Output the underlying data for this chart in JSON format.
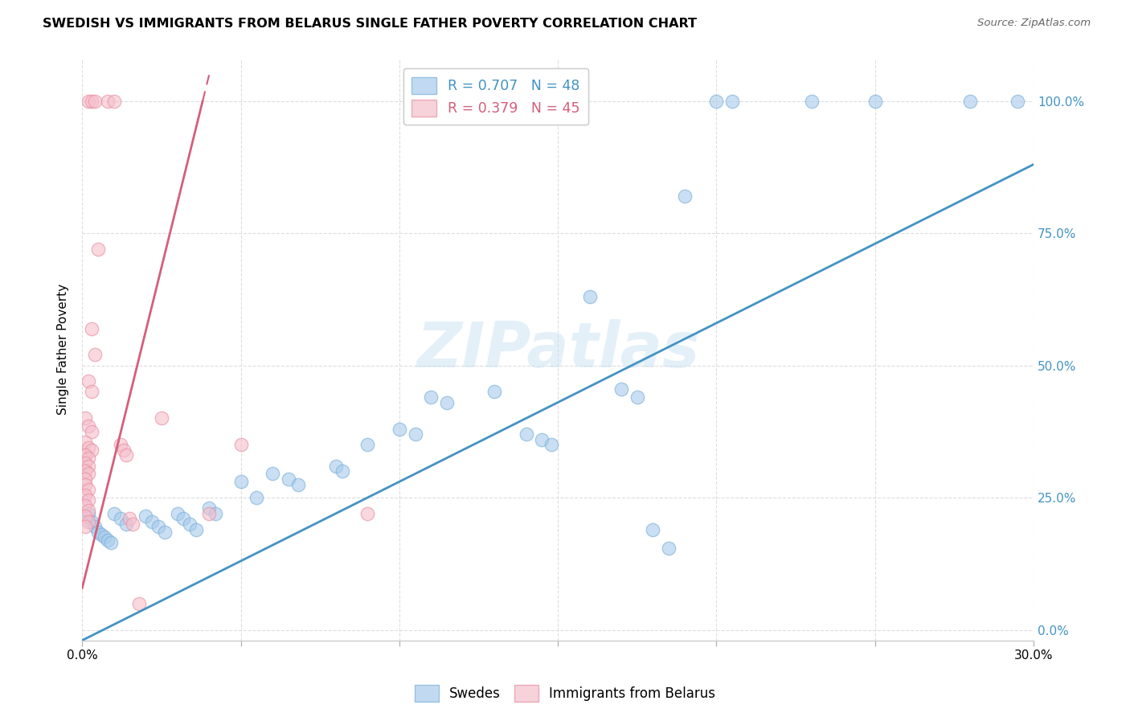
{
  "title": "SWEDISH VS IMMIGRANTS FROM BELARUS SINGLE FATHER POVERTY CORRELATION CHART",
  "source": "Source: ZipAtlas.com",
  "ylabel": "Single Father Poverty",
  "xlim": [
    0.0,
    0.3
  ],
  "ylim": [
    -0.02,
    1.08
  ],
  "xticks": [
    0.0,
    0.05,
    0.1,
    0.15,
    0.2,
    0.25,
    0.3
  ],
  "xtick_labels": [
    "0.0%",
    "",
    "",
    "",
    "",
    "",
    "30.0%"
  ],
  "ytick_labels_right": [
    "100.0%",
    "75.0%",
    "50.0%",
    "25.0%",
    "0.0%"
  ],
  "ytick_vals_right": [
    1.0,
    0.75,
    0.5,
    0.25,
    0.0
  ],
  "grid_yvals": [
    0.0,
    0.25,
    0.5,
    0.75,
    1.0
  ],
  "grid_color": "#dddddd",
  "watermark": "ZIPatlas",
  "blue_color": "#a8cbec",
  "pink_color": "#f5bfcc",
  "blue_line_color": "#4393c3",
  "pink_line_color": "#d45f7a",
  "blue_scatter": [
    [
      0.002,
      0.22
    ],
    [
      0.003,
      0.205
    ],
    [
      0.004,
      0.195
    ],
    [
      0.005,
      0.185
    ],
    [
      0.006,
      0.18
    ],
    [
      0.007,
      0.175
    ],
    [
      0.008,
      0.17
    ],
    [
      0.009,
      0.165
    ],
    [
      0.01,
      0.22
    ],
    [
      0.012,
      0.21
    ],
    [
      0.014,
      0.2
    ],
    [
      0.02,
      0.215
    ],
    [
      0.022,
      0.205
    ],
    [
      0.024,
      0.195
    ],
    [
      0.026,
      0.185
    ],
    [
      0.03,
      0.22
    ],
    [
      0.032,
      0.21
    ],
    [
      0.034,
      0.2
    ],
    [
      0.036,
      0.19
    ],
    [
      0.04,
      0.23
    ],
    [
      0.042,
      0.22
    ],
    [
      0.05,
      0.28
    ],
    [
      0.055,
      0.25
    ],
    [
      0.06,
      0.295
    ],
    [
      0.065,
      0.285
    ],
    [
      0.068,
      0.275
    ],
    [
      0.08,
      0.31
    ],
    [
      0.082,
      0.3
    ],
    [
      0.09,
      0.35
    ],
    [
      0.1,
      0.38
    ],
    [
      0.105,
      0.37
    ],
    [
      0.11,
      0.44
    ],
    [
      0.115,
      0.43
    ],
    [
      0.13,
      0.45
    ],
    [
      0.14,
      0.37
    ],
    [
      0.145,
      0.36
    ],
    [
      0.148,
      0.35
    ],
    [
      0.16,
      0.63
    ],
    [
      0.17,
      0.455
    ],
    [
      0.175,
      0.44
    ],
    [
      0.18,
      0.19
    ],
    [
      0.185,
      0.155
    ],
    [
      0.19,
      0.82
    ],
    [
      0.2,
      1.0
    ],
    [
      0.205,
      1.0
    ],
    [
      0.23,
      1.0
    ],
    [
      0.25,
      1.0
    ],
    [
      0.28,
      1.0
    ],
    [
      0.295,
      1.0
    ]
  ],
  "pink_scatter": [
    [
      0.002,
      1.0
    ],
    [
      0.003,
      1.0
    ],
    [
      0.004,
      1.0
    ],
    [
      0.008,
      1.0
    ],
    [
      0.01,
      1.0
    ],
    [
      0.005,
      0.72
    ],
    [
      0.003,
      0.57
    ],
    [
      0.004,
      0.52
    ],
    [
      0.002,
      0.47
    ],
    [
      0.003,
      0.45
    ],
    [
      0.001,
      0.4
    ],
    [
      0.002,
      0.385
    ],
    [
      0.003,
      0.375
    ],
    [
      0.001,
      0.355
    ],
    [
      0.002,
      0.345
    ],
    [
      0.003,
      0.34
    ],
    [
      0.001,
      0.33
    ],
    [
      0.002,
      0.325
    ],
    [
      0.001,
      0.315
    ],
    [
      0.002,
      0.31
    ],
    [
      0.001,
      0.3
    ],
    [
      0.002,
      0.295
    ],
    [
      0.001,
      0.285
    ],
    [
      0.001,
      0.275
    ],
    [
      0.002,
      0.265
    ],
    [
      0.001,
      0.255
    ],
    [
      0.002,
      0.245
    ],
    [
      0.001,
      0.235
    ],
    [
      0.002,
      0.225
    ],
    [
      0.001,
      0.215
    ],
    [
      0.002,
      0.205
    ],
    [
      0.001,
      0.195
    ],
    [
      0.012,
      0.35
    ],
    [
      0.013,
      0.34
    ],
    [
      0.014,
      0.33
    ],
    [
      0.015,
      0.21
    ],
    [
      0.016,
      0.2
    ],
    [
      0.018,
      0.05
    ],
    [
      0.025,
      0.4
    ],
    [
      0.04,
      0.22
    ],
    [
      0.05,
      0.35
    ],
    [
      0.09,
      0.22
    ]
  ],
  "blue_line": {
    "x0": 0.0,
    "y0": -0.02,
    "x1": 0.3,
    "y1": 0.88
  },
  "pink_line_solid": {
    "x0": 0.005,
    "y0": 0.2,
    "x1": 0.038,
    "y1": 1.0
  },
  "pink_line_dashed": {
    "x0": 0.005,
    "y0": 0.2,
    "x1": 0.038,
    "y1": 1.0
  }
}
